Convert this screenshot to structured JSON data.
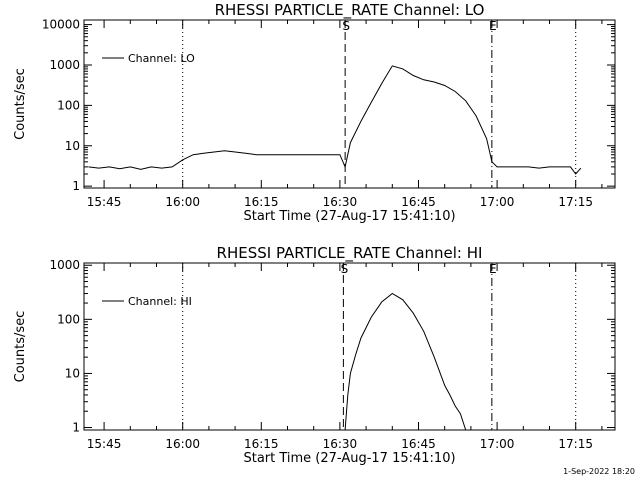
{
  "footer": {
    "timestamp": "1-Sep-2022 18:20"
  },
  "chart_data": [
    {
      "type": "line",
      "title": "RHESSI PARTICLE_RATE Channel: LO",
      "xlabel": "Start Time (27-Aug-17 15:41:10)",
      "ylabel": "Counts/sec",
      "y_scale": "log",
      "xlim": [
        "15:41:10",
        "17:22:30"
      ],
      "ylim": [
        0.9,
        13000
      ],
      "x_ticks": [
        "15:45",
        "16:00",
        "16:15",
        "16:30",
        "16:45",
        "17:00",
        "17:15"
      ],
      "y_ticks": [
        "1",
        "10",
        "100",
        "1000",
        "10000"
      ],
      "legend": {
        "position": "top-left",
        "entries": [
          "Channel: LO"
        ]
      },
      "series": [
        {
          "name": "Channel: LO",
          "x": [
            "15:42",
            "15:44",
            "15:46",
            "15:48",
            "15:50",
            "15:52",
            "15:54",
            "15:56",
            "15:58",
            "16:00",
            "16:02",
            "16:04",
            "16:06",
            "16:08",
            "16:10",
            "16:12",
            "16:14",
            "16:16",
            "16:18",
            "16:20",
            "16:22",
            "16:24",
            "16:26",
            "16:28",
            "16:30",
            "16:31",
            "16:32",
            "16:34",
            "16:36",
            "16:38",
            "16:40",
            "16:42",
            "16:44",
            "16:46",
            "16:48",
            "16:50",
            "16:52",
            "16:54",
            "16:56",
            "16:58",
            "16:59",
            "17:00",
            "17:02",
            "17:04",
            "17:06",
            "17:08",
            "17:10",
            "17:12",
            "17:14",
            "17:15",
            "17:16"
          ],
          "values": [
            3,
            2.8,
            3,
            2.7,
            3,
            2.6,
            3,
            2.8,
            3,
            4.5,
            6,
            6.5,
            7,
            7.5,
            7,
            6.5,
            6,
            6,
            6,
            6,
            6,
            6,
            6,
            6,
            6,
            3,
            12,
            40,
            120,
            350,
            950,
            800,
            550,
            430,
            380,
            310,
            220,
            130,
            55,
            15,
            4,
            3,
            3,
            3,
            3,
            2.8,
            3,
            3,
            3,
            2,
            2.8
          ]
        }
      ],
      "markers": [
        {
          "label": "S",
          "time": "16:31:00",
          "style": "dashed"
        },
        {
          "label": "E",
          "time": "16:59:00",
          "style": "dash-dot"
        }
      ],
      "dotted_lines": [
        "16:00:00",
        "17:15:00"
      ]
    },
    {
      "type": "line",
      "title": "RHESSI PARTICLE_RATE Channel: HI",
      "xlabel": "Start Time (27-Aug-17 15:41:10)",
      "ylabel": "Counts/sec",
      "y_scale": "log",
      "xlim": [
        "15:41:10",
        "17:22:30"
      ],
      "ylim": [
        0.9,
        1100
      ],
      "x_ticks": [
        "15:45",
        "16:00",
        "16:15",
        "16:30",
        "16:45",
        "17:00",
        "17:15"
      ],
      "y_ticks": [
        "1",
        "10",
        "100",
        "1000"
      ],
      "legend": {
        "position": "top-left",
        "entries": [
          "Channel: HI"
        ]
      },
      "series": [
        {
          "name": "Channel: HI",
          "x": [
            "16:31:00",
            "16:31:30",
            "16:32",
            "16:33",
            "16:34",
            "16:36",
            "16:38",
            "16:40",
            "16:42",
            "16:44",
            "16:46",
            "16:48",
            "16:50",
            "16:51",
            "16:52",
            "16:53",
            "16:54"
          ],
          "values": [
            0.9,
            4,
            10,
            22,
            45,
            110,
            210,
            300,
            230,
            130,
            60,
            20,
            6,
            4,
            2.5,
            1.8,
            0.9
          ]
        }
      ],
      "markers": [
        {
          "label": "S",
          "time": "16:30:40",
          "style": "dashed"
        },
        {
          "label": "E",
          "time": "16:59:00",
          "style": "dash-dot"
        }
      ],
      "dotted_lines": [
        "16:00:00",
        "17:15:00"
      ]
    }
  ]
}
